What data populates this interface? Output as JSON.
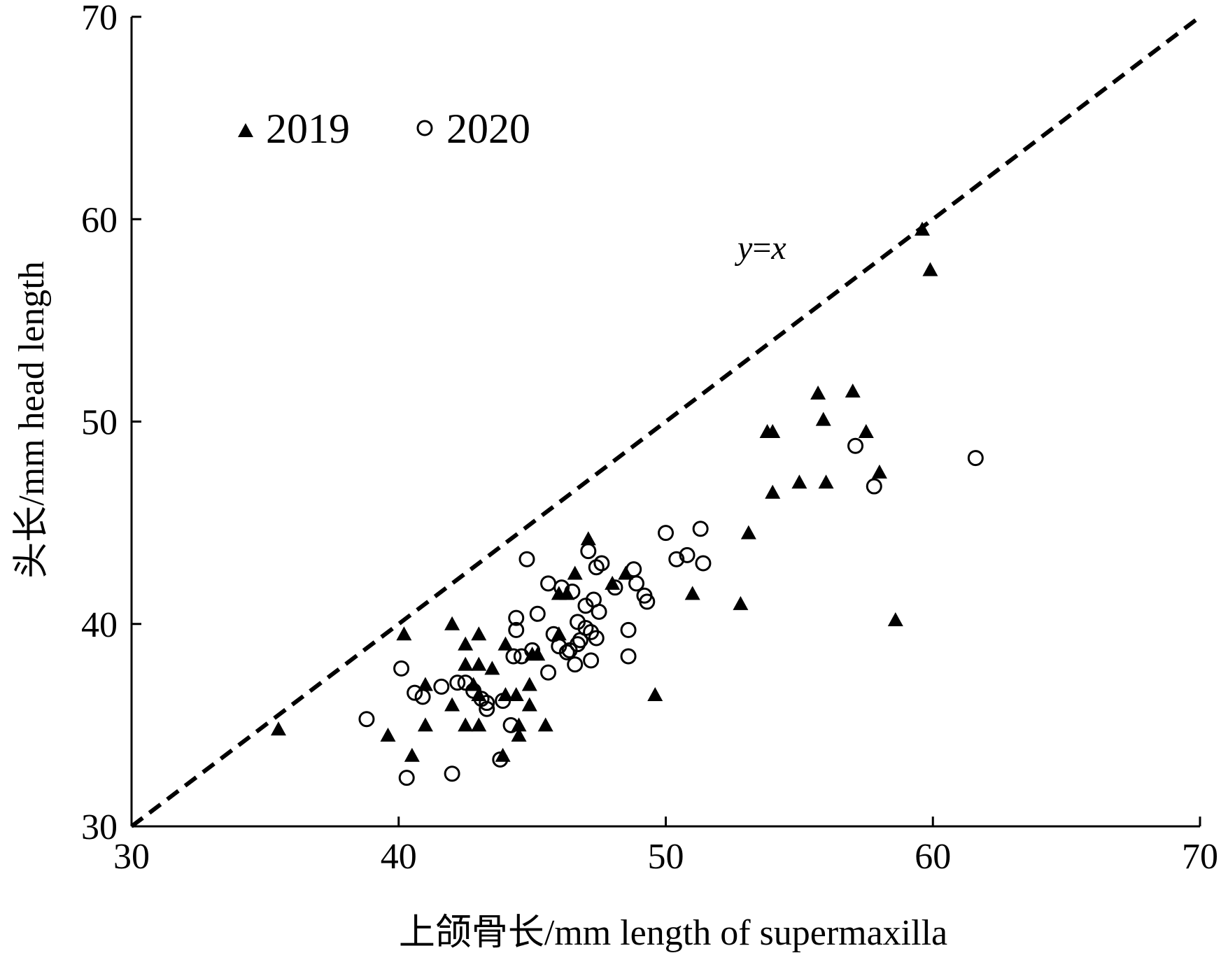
{
  "chart_data": {
    "type": "scatter",
    "title": "",
    "xlabel": "上颌骨长/mm length of supermaxilla",
    "ylabel": "头长/mm head length",
    "xlim": [
      30,
      70
    ],
    "ylim": [
      30,
      70
    ],
    "xticks": [
      "30",
      "40",
      "50",
      "60",
      "70"
    ],
    "yticks": [
      "30",
      "40",
      "50",
      "60",
      "70"
    ],
    "grid": false,
    "legend_position": "top-left",
    "reference_line": {
      "label_y": "y",
      "label_eq": "=",
      "label_x": "x",
      "from": [
        30,
        30
      ],
      "to": [
        70,
        70
      ]
    },
    "series": [
      {
        "name": "2019",
        "marker": "filled-triangle",
        "color": "#000000",
        "points": [
          [
            35.5,
            34.8
          ],
          [
            39.6,
            34.5
          ],
          [
            40.2,
            39.5
          ],
          [
            40.5,
            33.5
          ],
          [
            41.0,
            35.0
          ],
          [
            41.0,
            37.0
          ],
          [
            42.0,
            40.0
          ],
          [
            42.0,
            36.0
          ],
          [
            42.5,
            39.0
          ],
          [
            42.5,
            38.0
          ],
          [
            42.5,
            35.0
          ],
          [
            42.8,
            37.0
          ],
          [
            43.0,
            39.5
          ],
          [
            43.0,
            38.0
          ],
          [
            43.0,
            35.0
          ],
          [
            43.0,
            36.5
          ],
          [
            43.5,
            37.8
          ],
          [
            43.9,
            33.5
          ],
          [
            44.0,
            39.0
          ],
          [
            44.0,
            36.5
          ],
          [
            44.4,
            36.5
          ],
          [
            44.5,
            35.0
          ],
          [
            44.5,
            34.5
          ],
          [
            44.9,
            37.0
          ],
          [
            44.9,
            36.0
          ],
          [
            45.0,
            38.5
          ],
          [
            45.2,
            38.5
          ],
          [
            45.5,
            35.0
          ],
          [
            46.0,
            39.5
          ],
          [
            46.0,
            41.5
          ],
          [
            46.3,
            41.5
          ],
          [
            46.6,
            42.5
          ],
          [
            47.1,
            44.2
          ],
          [
            48.0,
            42.0
          ],
          [
            48.5,
            42.5
          ],
          [
            49.6,
            36.5
          ],
          [
            51.0,
            41.5
          ],
          [
            52.8,
            41.0
          ],
          [
            53.1,
            44.5
          ],
          [
            53.8,
            49.5
          ],
          [
            54.0,
            49.5
          ],
          [
            54.0,
            46.5
          ],
          [
            55.0,
            47.0
          ],
          [
            55.7,
            51.4
          ],
          [
            55.9,
            50.1
          ],
          [
            56.0,
            47.0
          ],
          [
            57.0,
            51.5
          ],
          [
            57.5,
            49.5
          ],
          [
            58.0,
            47.5
          ],
          [
            58.6,
            40.2
          ],
          [
            59.6,
            59.5
          ],
          [
            59.9,
            57.5
          ]
        ]
      },
      {
        "name": "2020",
        "marker": "open-circle",
        "color": "#000000",
        "points": [
          [
            38.8,
            35.3
          ],
          [
            40.1,
            37.8
          ],
          [
            40.3,
            32.4
          ],
          [
            40.6,
            36.6
          ],
          [
            40.9,
            36.4
          ],
          [
            41.6,
            36.9
          ],
          [
            42.0,
            32.6
          ],
          [
            42.2,
            37.1
          ],
          [
            42.5,
            37.1
          ],
          [
            42.8,
            36.7
          ],
          [
            43.1,
            36.3
          ],
          [
            43.3,
            36.1
          ],
          [
            43.3,
            35.8
          ],
          [
            43.9,
            36.2
          ],
          [
            43.8,
            33.3
          ],
          [
            44.2,
            35.0
          ],
          [
            44.3,
            38.4
          ],
          [
            44.4,
            40.3
          ],
          [
            44.4,
            39.7
          ],
          [
            44.6,
            38.4
          ],
          [
            44.8,
            43.2
          ],
          [
            45.0,
            38.7
          ],
          [
            45.2,
            40.5
          ],
          [
            45.6,
            37.6
          ],
          [
            45.6,
            42.0
          ],
          [
            45.8,
            39.5
          ],
          [
            46.0,
            38.9
          ],
          [
            46.1,
            41.8
          ],
          [
            46.3,
            38.6
          ],
          [
            46.4,
            38.7
          ],
          [
            46.5,
            41.6
          ],
          [
            46.6,
            38.0
          ],
          [
            46.7,
            39.0
          ],
          [
            46.7,
            40.1
          ],
          [
            46.8,
            39.2
          ],
          [
            47.0,
            39.8
          ],
          [
            47.0,
            40.9
          ],
          [
            47.1,
            43.6
          ],
          [
            47.2,
            39.6
          ],
          [
            47.2,
            38.2
          ],
          [
            47.3,
            41.2
          ],
          [
            47.4,
            39.3
          ],
          [
            47.4,
            42.8
          ],
          [
            47.5,
            40.6
          ],
          [
            47.6,
            43.0
          ],
          [
            48.1,
            41.8
          ],
          [
            48.6,
            39.7
          ],
          [
            48.6,
            38.4
          ],
          [
            48.8,
            42.7
          ],
          [
            48.9,
            42.0
          ],
          [
            49.2,
            41.4
          ],
          [
            49.3,
            41.1
          ],
          [
            50.0,
            44.5
          ],
          [
            50.4,
            43.2
          ],
          [
            50.8,
            43.4
          ],
          [
            51.3,
            44.7
          ],
          [
            51.4,
            43.0
          ],
          [
            57.1,
            48.8
          ],
          [
            57.8,
            46.8
          ],
          [
            61.6,
            48.2
          ]
        ]
      }
    ]
  }
}
